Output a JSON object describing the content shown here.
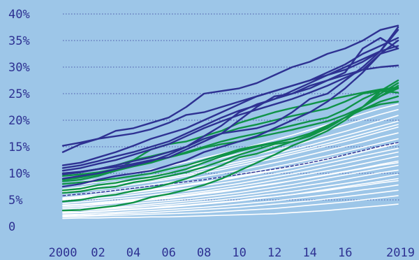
{
  "chart_data": {
    "type": "line",
    "title": "",
    "xlabel": "",
    "ylabel": "",
    "x": [
      2000,
      2001,
      2002,
      2003,
      2004,
      2005,
      2006,
      2007,
      2008,
      2009,
      2010,
      2011,
      2012,
      2013,
      2014,
      2015,
      2016,
      2017,
      2018,
      2019
    ],
    "xticks": [
      {
        "value": 2000,
        "label": "2000"
      },
      {
        "value": 2002,
        "label": "02"
      },
      {
        "value": 2004,
        "label": "04"
      },
      {
        "value": 2006,
        "label": "06"
      },
      {
        "value": 2008,
        "label": "08"
      },
      {
        "value": 2010,
        "label": "10"
      },
      {
        "value": 2012,
        "label": "12"
      },
      {
        "value": 2014,
        "label": "14"
      },
      {
        "value": 2016,
        "label": "16"
      },
      {
        "value": 2019,
        "label": "2019"
      }
    ],
    "yticks": [
      {
        "value": 0,
        "label": "0"
      },
      {
        "value": 5,
        "label": "5%"
      },
      {
        "value": 10,
        "label": "10%"
      },
      {
        "value": 15,
        "label": "15%"
      },
      {
        "value": 20,
        "label": "20%"
      },
      {
        "value": 25,
        "label": "25%"
      },
      {
        "value": 30,
        "label": "30%"
      },
      {
        "value": 35,
        "label": "35%"
      },
      {
        "value": 40,
        "label": "40%"
      }
    ],
    "ylim": [
      0,
      40
    ],
    "xlim": [
      2000,
      2019
    ],
    "grid": true,
    "colors": {
      "background": "#9dc6e8",
      "dark": "#2e3192",
      "green": "#0f9347",
      "light": "#ffffff",
      "grid": "#2e3192"
    },
    "series": [
      {
        "group": "white",
        "values": [
          1.5,
          1.6,
          1.6,
          1.7,
          1.7,
          1.8,
          1.8,
          1.9,
          2.0,
          2.1,
          2.2,
          2.3,
          2.4,
          2.6,
          2.8,
          3.0,
          3.3,
          3.6,
          3.9,
          4.2
        ]
      },
      {
        "group": "white",
        "values": [
          1.8,
          1.9,
          2.0,
          2.1,
          2.2,
          2.3,
          2.4,
          2.5,
          2.6,
          2.8,
          3.0,
          3.2,
          3.4,
          3.7,
          4.0,
          4.3,
          4.6,
          5.0,
          5.4,
          5.8
        ]
      },
      {
        "group": "white",
        "values": [
          2.0,
          2.1,
          2.2,
          2.4,
          2.5,
          2.6,
          2.8,
          3.0,
          3.2,
          3.4,
          3.6,
          3.9,
          4.2,
          4.5,
          4.8,
          5.2,
          5.6,
          6.0,
          6.4,
          6.8
        ]
      },
      {
        "group": "white",
        "values": [
          2.2,
          2.3,
          2.5,
          2.6,
          2.8,
          3.0,
          3.2,
          3.4,
          3.6,
          3.9,
          4.2,
          4.5,
          4.8,
          5.2,
          5.6,
          6.0,
          6.4,
          6.9,
          7.3,
          7.8
        ]
      },
      {
        "group": "white",
        "values": [
          2.5,
          2.6,
          2.8,
          3.0,
          3.2,
          3.4,
          3.6,
          3.9,
          4.2,
          4.5,
          4.8,
          5.2,
          5.6,
          6.0,
          6.5,
          7.0,
          7.5,
          8.0,
          8.5,
          9.0
        ]
      },
      {
        "group": "white",
        "values": [
          2.8,
          3.0,
          3.2,
          3.4,
          3.6,
          3.9,
          4.1,
          4.4,
          4.7,
          5.0,
          5.4,
          5.8,
          6.2,
          6.6,
          7.1,
          7.6,
          8.1,
          8.6,
          9.2,
          9.8
        ]
      },
      {
        "group": "white",
        "values": [
          3.0,
          3.2,
          3.4,
          3.6,
          3.9,
          4.2,
          4.5,
          4.8,
          5.1,
          5.5,
          5.9,
          6.3,
          6.8,
          7.3,
          7.8,
          8.3,
          8.9,
          9.5,
          10.1,
          10.6
        ]
      },
      {
        "group": "white",
        "values": [
          3.3,
          3.5,
          3.7,
          4.0,
          4.3,
          4.6,
          4.9,
          5.2,
          5.6,
          6.0,
          6.4,
          6.9,
          7.4,
          7.9,
          8.5,
          9.1,
          9.7,
          10.3,
          10.9,
          11.5
        ]
      },
      {
        "group": "white",
        "values": [
          3.6,
          3.8,
          4.1,
          4.4,
          4.7,
          5.0,
          5.3,
          5.7,
          6.1,
          6.5,
          7.0,
          7.5,
          8.0,
          8.6,
          9.2,
          9.8,
          10.4,
          11.0,
          11.7,
          12.3
        ]
      },
      {
        "group": "white",
        "values": [
          4.0,
          4.2,
          4.5,
          4.8,
          5.1,
          5.4,
          5.8,
          6.2,
          6.6,
          7.1,
          7.6,
          8.1,
          8.7,
          9.3,
          9.9,
          10.5,
          11.1,
          11.8,
          12.5,
          13.2
        ]
      },
      {
        "group": "white",
        "values": [
          4.3,
          4.6,
          4.9,
          5.2,
          5.5,
          5.9,
          6.3,
          6.7,
          7.1,
          7.6,
          8.1,
          8.7,
          9.3,
          9.9,
          10.5,
          11.2,
          11.9,
          12.6,
          13.3,
          14.0
        ]
      },
      {
        "group": "white",
        "values": [
          4.7,
          5.0,
          5.3,
          5.6,
          6.0,
          6.4,
          6.8,
          7.2,
          7.7,
          8.2,
          8.7,
          9.3,
          9.9,
          10.5,
          11.2,
          11.9,
          12.6,
          13.3,
          14.0,
          14.7
        ]
      },
      {
        "group": "white",
        "values": [
          5.0,
          5.3,
          5.6,
          6.0,
          6.4,
          6.8,
          7.2,
          7.7,
          8.2,
          8.7,
          9.3,
          9.9,
          10.5,
          11.1,
          11.8,
          12.5,
          13.2,
          14.0,
          14.8,
          15.6
        ]
      },
      {
        "group": "white",
        "values": [
          5.4,
          5.7,
          6.1,
          6.5,
          6.9,
          7.3,
          7.8,
          8.3,
          8.8,
          9.3,
          9.9,
          10.5,
          11.2,
          11.9,
          12.6,
          13.3,
          14.1,
          14.9,
          15.7,
          16.5
        ]
      },
      {
        "group": "white",
        "values": [
          5.8,
          6.1,
          6.5,
          6.9,
          7.3,
          7.8,
          8.3,
          8.8,
          9.4,
          10.0,
          10.6,
          11.3,
          12.0,
          12.7,
          13.5,
          14.3,
          15.1,
          15.9,
          16.8,
          17.6
        ]
      },
      {
        "group": "white",
        "values": [
          6.2,
          6.6,
          7.0,
          7.4,
          7.9,
          8.4,
          8.9,
          9.5,
          10.1,
          10.7,
          11.4,
          12.1,
          12.8,
          13.6,
          14.4,
          15.2,
          16.0,
          16.9,
          17.8,
          18.7
        ]
      },
      {
        "group": "white",
        "values": [
          6.6,
          7.0,
          7.5,
          8.0,
          8.5,
          9.0,
          9.6,
          10.2,
          10.8,
          11.5,
          12.2,
          12.9,
          13.7,
          14.5,
          15.3,
          16.2,
          17.1,
          18.0,
          18.9,
          19.8
        ]
      },
      {
        "group": "white",
        "values": [
          7.0,
          7.4,
          7.9,
          8.4,
          8.9,
          9.5,
          10.1,
          10.7,
          11.4,
          12.1,
          12.8,
          13.6,
          14.4,
          15.2,
          16.1,
          17.0,
          17.9,
          18.9,
          19.9,
          20.9
        ]
      },
      {
        "group": "white",
        "values": [
          7.5,
          7.9,
          8.4,
          8.9,
          9.5,
          10.1,
          10.7,
          11.4,
          12.1,
          12.9,
          13.7,
          14.5,
          15.3,
          16.2,
          17.1,
          18.1,
          19.1,
          20.1,
          21.1,
          22.0
        ]
      },
      {
        "group": "white",
        "values": [
          8.0,
          8.4,
          8.9,
          9.5,
          10.1,
          10.7,
          11.4,
          12.1,
          12.9,
          13.7,
          14.5,
          15.4,
          16.3,
          17.2,
          18.2,
          19.2,
          20.2,
          21.2,
          22.2,
          23.0
        ]
      },
      {
        "group": "white",
        "values": [
          2.6,
          2.7,
          2.9,
          3.1,
          3.3,
          3.5,
          3.8,
          4.0,
          4.3,
          4.6,
          4.9,
          5.3,
          5.6,
          6.0,
          6.4,
          6.8,
          7.3,
          7.7,
          8.2,
          8.6
        ]
      },
      {
        "group": "white",
        "values": [
          3.9,
          4.1,
          4.3,
          4.6,
          4.9,
          5.2,
          5.5,
          5.9,
          6.3,
          6.7,
          7.1,
          7.6,
          8.1,
          8.6,
          9.1,
          9.7,
          10.3,
          10.9,
          11.5,
          12.0
        ]
      },
      {
        "group": "white",
        "values": [
          5.2,
          5.5,
          5.8,
          6.2,
          6.6,
          7.0,
          7.4,
          7.9,
          8.4,
          8.9,
          9.5,
          10.1,
          10.7,
          11.4,
          12.1,
          12.8,
          13.5,
          14.3,
          15.0,
          15.8
        ]
      },
      {
        "group": "white",
        "values": [
          6.4,
          6.8,
          7.2,
          7.7,
          8.2,
          8.7,
          9.2,
          9.8,
          10.4,
          11.1,
          11.8,
          12.5,
          13.2,
          14.0,
          14.8,
          15.6,
          16.5,
          17.4,
          18.3,
          19.2
        ]
      },
      {
        "group": "green",
        "values": [
          3.0,
          3.1,
          3.5,
          3.9,
          4.5,
          5.5,
          6.1,
          6.9,
          7.8,
          9.0,
          10.5,
          12.0,
          13.5,
          15.2,
          16.5,
          18.0,
          20.0,
          22.5,
          25.0,
          27.0
        ]
      },
      {
        "group": "green",
        "values": [
          4.7,
          5.0,
          5.6,
          6.0,
          6.7,
          7.2,
          8.0,
          9.0,
          10.2,
          11.5,
          13.0,
          13.7,
          14.8,
          16.0,
          17.0,
          18.5,
          20.5,
          22.5,
          24.5,
          26.0
        ]
      },
      {
        "group": "green",
        "values": [
          6.3,
          6.6,
          7.2,
          7.5,
          8.3,
          8.8,
          9.5,
          10.2,
          11.2,
          12.3,
          13.5,
          14.5,
          15.5,
          16.0,
          17.2,
          18.6,
          20.5,
          22.5,
          24.5,
          26.5
        ]
      },
      {
        "group": "green",
        "values": [
          6.8,
          7.1,
          7.8,
          8.2,
          8.9,
          9.3,
          10.0,
          10.8,
          12.0,
          13.2,
          14.2,
          15.0,
          15.8,
          16.5,
          17.5,
          18.8,
          20.5,
          22.0,
          23.5,
          24.5
        ]
      },
      {
        "group": "green",
        "values": [
          8.0,
          8.3,
          8.6,
          9.0,
          9.5,
          10.0,
          10.8,
          11.5,
          12.5,
          13.5,
          14.5,
          15.2,
          15.8,
          16.5,
          17.5,
          19.0,
          20.5,
          22.0,
          23.0,
          23.5
        ]
      },
      {
        "group": "green",
        "values": [
          8.8,
          9.2,
          9.8,
          10.5,
          11.3,
          12.0,
          13.0,
          13.8,
          14.8,
          15.5,
          16.0,
          16.8,
          17.5,
          18.2,
          19.0,
          19.8,
          21.0,
          22.5,
          25.5,
          27.5
        ]
      },
      {
        "group": "green",
        "values": [
          9.5,
          9.8,
          10.2,
          10.8,
          11.5,
          12.2,
          13.0,
          14.0,
          15.0,
          16.0,
          16.8,
          17.5,
          18.2,
          19.0,
          19.8,
          20.5,
          22.0,
          24.0,
          25.5,
          26.0
        ]
      },
      {
        "group": "green",
        "values": [
          10.0,
          10.2,
          10.8,
          11.5,
          12.5,
          13.2,
          14.0,
          15.0,
          16.5,
          17.5,
          18.5,
          19.2,
          20.0,
          20.8,
          21.5,
          22.2,
          23.5,
          25.0,
          25.5,
          25.2
        ]
      },
      {
        "group": "green",
        "values": [
          8.5,
          8.8,
          9.5,
          10.5,
          12.5,
          14.5,
          15.5,
          16.0,
          17.0,
          18.0,
          19.5,
          20.5,
          21.5,
          22.3,
          23.0,
          23.8,
          24.5,
          25.2,
          25.8,
          26.2
        ]
      },
      {
        "group": "dark",
        "values": [
          7.5,
          8.0,
          8.8,
          9.5,
          10.0,
          10.5,
          11.5,
          12.5,
          14.0,
          15.0,
          16.0,
          17.0,
          18.5,
          20.0,
          21.5,
          23.5,
          26.0,
          29.0,
          32.5,
          35.0
        ]
      },
      {
        "group": "dark",
        "values": [
          9.8,
          10.2,
          10.8,
          11.5,
          12.3,
          13.0,
          14.0,
          15.0,
          16.5,
          17.5,
          18.0,
          18.5,
          19.5,
          21.5,
          24.0,
          25.0,
          27.5,
          30.0,
          33.0,
          37.5
        ]
      },
      {
        "group": "dark",
        "values": [
          10.5,
          11.0,
          11.8,
          12.5,
          13.5,
          14.5,
          15.5,
          17.0,
          18.5,
          19.8,
          21.0,
          22.0,
          23.0,
          24.0,
          25.2,
          26.5,
          28.0,
          29.5,
          30.0,
          30.3
        ]
      },
      {
        "group": "dark",
        "values": [
          11.0,
          11.5,
          12.3,
          13.2,
          14.0,
          15.0,
          16.0,
          17.5,
          19.0,
          20.5,
          21.8,
          22.8,
          24.0,
          25.0,
          26.5,
          27.5,
          28.5,
          29.5,
          32.5,
          33.5
        ]
      },
      {
        "group": "dark",
        "values": [
          11.5,
          12.0,
          13.0,
          14.0,
          15.2,
          16.5,
          17.5,
          18.5,
          20.0,
          21.5,
          23.0,
          24.5,
          25.5,
          26.5,
          27.5,
          29.0,
          30.5,
          32.5,
          34.0,
          35.5
        ]
      },
      {
        "group": "dark",
        "values": [
          14.0,
          15.5,
          16.5,
          17.0,
          17.5,
          18.3,
          19.5,
          21.0,
          21.5,
          22.5,
          23.5,
          24.5,
          25.5,
          26.5,
          27.5,
          28.5,
          29.5,
          31.0,
          33.0,
          37.0
        ]
      },
      {
        "group": "dark",
        "values": [
          15.2,
          15.8,
          16.5,
          18.0,
          18.5,
          19.5,
          20.5,
          22.5,
          25.0,
          25.5,
          26.0,
          27.0,
          28.5,
          30.0,
          31.0,
          32.5,
          33.5,
          35.0,
          37.0,
          37.8
        ]
      },
      {
        "group": "dark",
        "values": [
          10.0,
          10.3,
          10.8,
          11.2,
          11.8,
          12.5,
          13.0,
          14.5,
          16.0,
          17.5,
          20.0,
          22.5,
          24.5,
          25.0,
          26.0,
          27.5,
          29.0,
          33.5,
          35.5,
          33.5
        ]
      },
      {
        "group": "dark",
        "values": [
          9.0,
          9.5,
          10.0,
          10.8,
          11.5,
          12.3,
          13.5,
          15.0,
          17.0,
          19.0,
          21.5,
          23.0,
          24.0,
          25.5,
          27.0,
          28.5,
          30.0,
          31.5,
          33.0,
          34.0
        ]
      },
      {
        "group": "dashed",
        "values": [
          5.8,
          6.1,
          6.4,
          6.8,
          7.2,
          7.6,
          8.0,
          8.4,
          8.8,
          9.3,
          9.8,
          10.3,
          10.8,
          11.4,
          12.0,
          12.7,
          13.5,
          14.3,
          15.1,
          15.8
        ]
      }
    ]
  }
}
